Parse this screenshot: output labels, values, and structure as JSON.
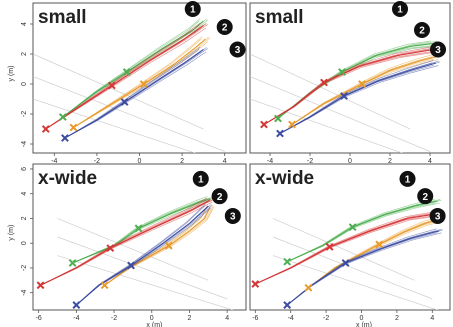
{
  "chart_data": [
    {
      "type": "line",
      "title": "small",
      "xlabel": "x (m)",
      "ylabel": "y (m)",
      "xlim": [
        -5,
        5
      ],
      "ylim": [
        -4.6,
        5.4
      ],
      "xticks": [
        -4,
        -2,
        0,
        2,
        4
      ],
      "yticks": [
        -4,
        -2,
        0,
        2,
        4
      ],
      "grid": false,
      "series": [
        {
          "color": "#4caf50",
          "values": [
            [
              -3.6,
              -2.2
            ],
            [
              -2.0,
              -0.5
            ],
            [
              -0.6,
              0.8
            ],
            [
              1.0,
              2.3
            ],
            [
              2.5,
              3.6
            ],
            [
              3.0,
              4.2
            ]
          ]
        },
        {
          "color": "#d43535",
          "values": [
            [
              -4.4,
              -3.0
            ],
            [
              -2.8,
              -1.5
            ],
            [
              -1.3,
              -0.1
            ],
            [
              0.4,
              1.5
            ],
            [
              2.0,
              2.9
            ],
            [
              3.0,
              3.9
            ]
          ]
        },
        {
          "color": "#e89a2a",
          "values": [
            [
              -3.1,
              -2.9
            ],
            [
              -1.5,
              -1.5
            ],
            [
              0.2,
              0.0
            ],
            [
              1.6,
              1.3
            ],
            [
              2.6,
              2.4
            ],
            [
              3.1,
              3.0
            ]
          ]
        },
        {
          "color": "#3b4ba0",
          "values": [
            [
              -3.5,
              -3.6
            ],
            [
              -2.0,
              -2.4
            ],
            [
              -0.7,
              -1.2
            ],
            [
              0.9,
              0.3
            ],
            [
              2.1,
              1.4
            ],
            [
              3.0,
              2.3
            ]
          ]
        }
      ],
      "markers": [
        {
          "color": "#4caf50",
          "x": -3.6,
          "y": -2.2
        },
        {
          "color": "#4caf50",
          "x": -0.6,
          "y": 0.8
        },
        {
          "color": "#d43535",
          "x": -4.4,
          "y": -3.0
        },
        {
          "color": "#d43535",
          "x": -1.3,
          "y": -0.1
        },
        {
          "color": "#e89a2a",
          "x": -3.1,
          "y": -2.9
        },
        {
          "color": "#e89a2a",
          "x": 0.2,
          "y": 0.0
        },
        {
          "color": "#3b4ba0",
          "x": -3.5,
          "y": -3.6
        },
        {
          "color": "#3b4ba0",
          "x": -0.7,
          "y": -1.2
        }
      ],
      "badges": [
        {
          "text": "1",
          "x": 2.5,
          "y": 5.0
        },
        {
          "text": "2",
          "x": 4.0,
          "y": 3.8
        },
        {
          "text": "3",
          "x": 4.6,
          "y": 2.3
        }
      ]
    },
    {
      "type": "line",
      "title": "small",
      "xlabel": "",
      "ylabel": "",
      "xlim": [
        -5,
        5
      ],
      "ylim": [
        -4.6,
        5.4
      ],
      "xticks": [
        -4,
        -2,
        0,
        2,
        4
      ],
      "yticks": [],
      "grid": false,
      "series": [
        {
          "color": "#4caf50",
          "values": [
            [
              -3.6,
              -2.3
            ],
            [
              -2.0,
              -0.6
            ],
            [
              -0.4,
              0.8
            ],
            [
              1.3,
              1.9
            ],
            [
              3.0,
              2.5
            ],
            [
              4.2,
              2.7
            ]
          ]
        },
        {
          "color": "#d43535",
          "values": [
            [
              -4.3,
              -2.7
            ],
            [
              -2.8,
              -1.5
            ],
            [
              -1.3,
              0.1
            ],
            [
              0.5,
              1.2
            ],
            [
              2.4,
              1.9
            ],
            [
              4.2,
              2.3
            ]
          ]
        },
        {
          "color": "#e89a2a",
          "values": [
            [
              -2.9,
              -2.7
            ],
            [
              -1.3,
              -1.3
            ],
            [
              0.6,
              0.0
            ],
            [
              2.0,
              0.9
            ],
            [
              3.4,
              1.5
            ],
            [
              4.3,
              1.8
            ]
          ]
        },
        {
          "color": "#3b4ba0",
          "values": [
            [
              -3.5,
              -3.3
            ],
            [
              -2.0,
              -2.2
            ],
            [
              -0.3,
              -0.8
            ],
            [
              1.4,
              0.2
            ],
            [
              3.0,
              0.9
            ],
            [
              4.3,
              1.4
            ]
          ]
        }
      ],
      "markers": [
        {
          "color": "#4caf50",
          "x": -3.6,
          "y": -2.3
        },
        {
          "color": "#4caf50",
          "x": -0.4,
          "y": 0.8
        },
        {
          "color": "#d43535",
          "x": -4.3,
          "y": -2.7
        },
        {
          "color": "#d43535",
          "x": -1.3,
          "y": 0.1
        },
        {
          "color": "#e89a2a",
          "x": -2.9,
          "y": -2.7
        },
        {
          "color": "#e89a2a",
          "x": 0.6,
          "y": 0.0
        },
        {
          "color": "#3b4ba0",
          "x": -3.5,
          "y": -3.3
        },
        {
          "color": "#3b4ba0",
          "x": -0.3,
          "y": -0.8
        }
      ],
      "badges": [
        {
          "text": "1",
          "x": 2.5,
          "y": 5.0
        },
        {
          "text": "2",
          "x": 3.6,
          "y": 3.6
        },
        {
          "text": "3",
          "x": 4.4,
          "y": 2.3
        }
      ]
    },
    {
      "type": "line",
      "title": "x-wide",
      "xlabel": "x (m)",
      "ylabel": "y (m)",
      "xlim": [
        -6.3,
        5
      ],
      "ylim": [
        -5.4,
        6.4
      ],
      "xticks": [
        -6,
        -4,
        -2,
        0,
        2,
        4
      ],
      "yticks": [
        -4,
        -2,
        0,
        2,
        4,
        6
      ],
      "grid": false,
      "series": [
        {
          "color": "#4caf50",
          "values": [
            [
              -4.2,
              -1.6
            ],
            [
              -2.0,
              -0.2
            ],
            [
              -0.7,
              1.2
            ],
            [
              1.0,
              2.4
            ],
            [
              2.5,
              3.3
            ],
            [
              3.1,
              3.6
            ]
          ]
        },
        {
          "color": "#d43535",
          "values": [
            [
              -5.9,
              -3.4
            ],
            [
              -4.0,
              -2.0
            ],
            [
              -2.2,
              -0.4
            ],
            [
              0.0,
              1.2
            ],
            [
              2.0,
              2.6
            ],
            [
              3.1,
              3.5
            ]
          ]
        },
        {
          "color": "#e89a2a",
          "values": [
            [
              -2.5,
              -3.4
            ],
            [
              -1.2,
              -2.0
            ],
            [
              0.9,
              -0.2
            ],
            [
              2.0,
              1.0
            ],
            [
              2.8,
              2.0
            ],
            [
              3.1,
              2.9
            ]
          ]
        },
        {
          "color": "#3b4ba0",
          "values": [
            [
              -4.0,
              -5.0
            ],
            [
              -2.8,
              -3.4
            ],
            [
              -1.1,
              -1.8
            ],
            [
              0.6,
              0.0
            ],
            [
              2.0,
              1.6
            ],
            [
              3.0,
              3.0
            ]
          ]
        }
      ],
      "markers": [
        {
          "color": "#4caf50",
          "x": -4.2,
          "y": -1.6
        },
        {
          "color": "#4caf50",
          "x": -0.7,
          "y": 1.2
        },
        {
          "color": "#d43535",
          "x": -5.9,
          "y": -3.4
        },
        {
          "color": "#d43535",
          "x": -2.2,
          "y": -0.4
        },
        {
          "color": "#e89a2a",
          "x": -2.5,
          "y": -3.4
        },
        {
          "color": "#e89a2a",
          "x": 0.9,
          "y": -0.2
        },
        {
          "color": "#3b4ba0",
          "x": -4.0,
          "y": -5.0
        },
        {
          "color": "#3b4ba0",
          "x": -1.1,
          "y": -1.8
        }
      ],
      "badges": [
        {
          "text": "1",
          "x": 2.6,
          "y": 5.2
        },
        {
          "text": "2",
          "x": 3.6,
          "y": 3.8
        },
        {
          "text": "3",
          "x": 4.3,
          "y": 2.2
        }
      ]
    },
    {
      "type": "line",
      "title": "x-wide",
      "xlabel": "x (m)",
      "ylabel": "",
      "xlim": [
        -6.3,
        5
      ],
      "ylim": [
        -5.4,
        6.4
      ],
      "xticks": [
        -6,
        -4,
        -2,
        0,
        2,
        4
      ],
      "yticks": [],
      "grid": false,
      "series": [
        {
          "color": "#4caf50",
          "values": [
            [
              -4.2,
              -1.5
            ],
            [
              -2.2,
              -0.2
            ],
            [
              -0.5,
              1.3
            ],
            [
              1.3,
              2.3
            ],
            [
              3.0,
              3.0
            ],
            [
              4.3,
              3.4
            ]
          ]
        },
        {
          "color": "#d43535",
          "values": [
            [
              -6.0,
              -3.3
            ],
            [
              -4.0,
              -2.0
            ],
            [
              -1.8,
              -0.3
            ],
            [
              0.5,
              1.0
            ],
            [
              2.6,
              2.0
            ],
            [
              4.4,
              2.4
            ]
          ]
        },
        {
          "color": "#e89a2a",
          "values": [
            [
              -3.0,
              -3.6
            ],
            [
              -1.5,
              -2.0
            ],
            [
              1.0,
              -0.1
            ],
            [
              2.4,
              0.9
            ],
            [
              3.6,
              1.6
            ],
            [
              4.4,
              1.9
            ]
          ]
        },
        {
          "color": "#3b4ba0",
          "values": [
            [
              -4.2,
              -5.0
            ],
            [
              -2.8,
              -3.4
            ],
            [
              -0.9,
              -1.6
            ],
            [
              1.0,
              -0.5
            ],
            [
              2.8,
              0.4
            ],
            [
              4.4,
              1.0
            ]
          ]
        }
      ],
      "markers": [
        {
          "color": "#4caf50",
          "x": -4.2,
          "y": -1.5
        },
        {
          "color": "#4caf50",
          "x": -0.5,
          "y": 1.3
        },
        {
          "color": "#d43535",
          "x": -6.0,
          "y": -3.3
        },
        {
          "color": "#d43535",
          "x": -1.8,
          "y": -0.3
        },
        {
          "color": "#e89a2a",
          "x": -3.0,
          "y": -3.6
        },
        {
          "color": "#e89a2a",
          "x": 1.0,
          "y": -0.1
        },
        {
          "color": "#3b4ba0",
          "x": -4.2,
          "y": -5.0
        },
        {
          "color": "#3b4ba0",
          "x": -0.9,
          "y": -1.6
        }
      ],
      "badges": [
        {
          "text": "1",
          "x": 2.6,
          "y": 5.2
        },
        {
          "text": "2",
          "x": 3.6,
          "y": 3.8
        },
        {
          "text": "3",
          "x": 4.3,
          "y": 2.2
        }
      ]
    }
  ]
}
